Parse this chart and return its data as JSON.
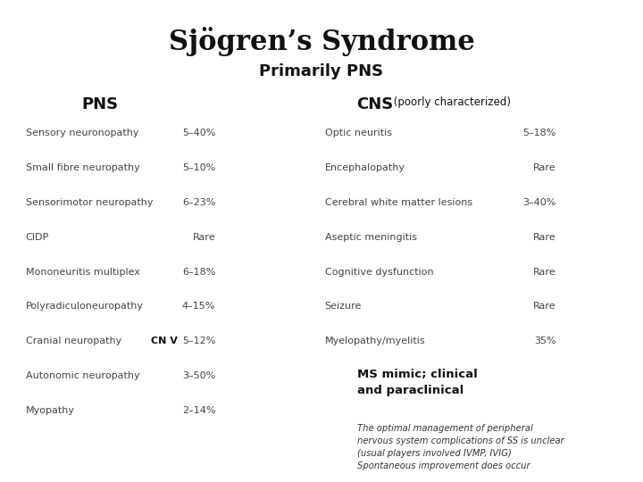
{
  "title": "Sjögren’s Syndrome",
  "subtitle": "Primarily PNS",
  "pns_header": "PNS",
  "cns_header": "CNS",
  "cns_subheader": " (poorly characterized)",
  "pns_rows": [
    {
      "label": "Sensory neuronopathy",
      "value": "5–40%",
      "highlight": true,
      "annotation": null
    },
    {
      "label": "Small fibre neuropathy",
      "value": "5–10%",
      "highlight": true,
      "annotation": null
    },
    {
      "label": "Sensorimotor neuropathy",
      "value": "6–23%",
      "highlight": false,
      "annotation": null
    },
    {
      "label": "CIDP",
      "value": "Rare",
      "highlight": false,
      "annotation": null
    },
    {
      "label": "Mononeuritis multiplex",
      "value": "6–18%",
      "highlight": false,
      "annotation": null
    },
    {
      "label": "Polyradiculoneuropathy",
      "value": "4–15%",
      "highlight": false,
      "annotation": null
    },
    {
      "label": "Cranial neuropathy",
      "value": "5–12%",
      "highlight": false,
      "annotation": "CN V"
    },
    {
      "label": "Autonomic neuropathy",
      "value": "3–50%",
      "highlight": true,
      "annotation": null
    },
    {
      "label": "Myopathy",
      "value": "2–14%",
      "highlight": false,
      "annotation": null
    }
  ],
  "cns_rows": [
    {
      "label": "Optic neuritis",
      "value": "5–18%",
      "highlight": false
    },
    {
      "label": "Encephalopathy",
      "value": "Rare",
      "highlight": false
    },
    {
      "label": "Cerebral white matter lesions",
      "value": "3–40%",
      "highlight": false
    },
    {
      "label": "Aseptic meningitis",
      "value": "Rare",
      "highlight": false
    },
    {
      "label": "Cognitive dysfunction",
      "value": "Rare",
      "highlight": false
    },
    {
      "label": "Seizure",
      "value": "Rare",
      "highlight": false
    },
    {
      "label": "Myelopathy/myelitis",
      "value": "35%",
      "highlight": true
    }
  ],
  "ms_mimic_text": "MS mimic; clinical\nand paraclinical",
  "bottom_text": "The optimal management of peripheral\nnervous system complications of SS is unclear\n(usual players involved IVMP, IVIG)\nSpontaneous improvement does occur",
  "highlight_color": "#f5f5c8",
  "highlight_border": "#c8b84a",
  "bg_color": "#ffffff",
  "text_color": "#444444",
  "row_font_size": 8.0,
  "header_font_size": 13,
  "title_font_size": 22,
  "subtitle_font_size": 13
}
